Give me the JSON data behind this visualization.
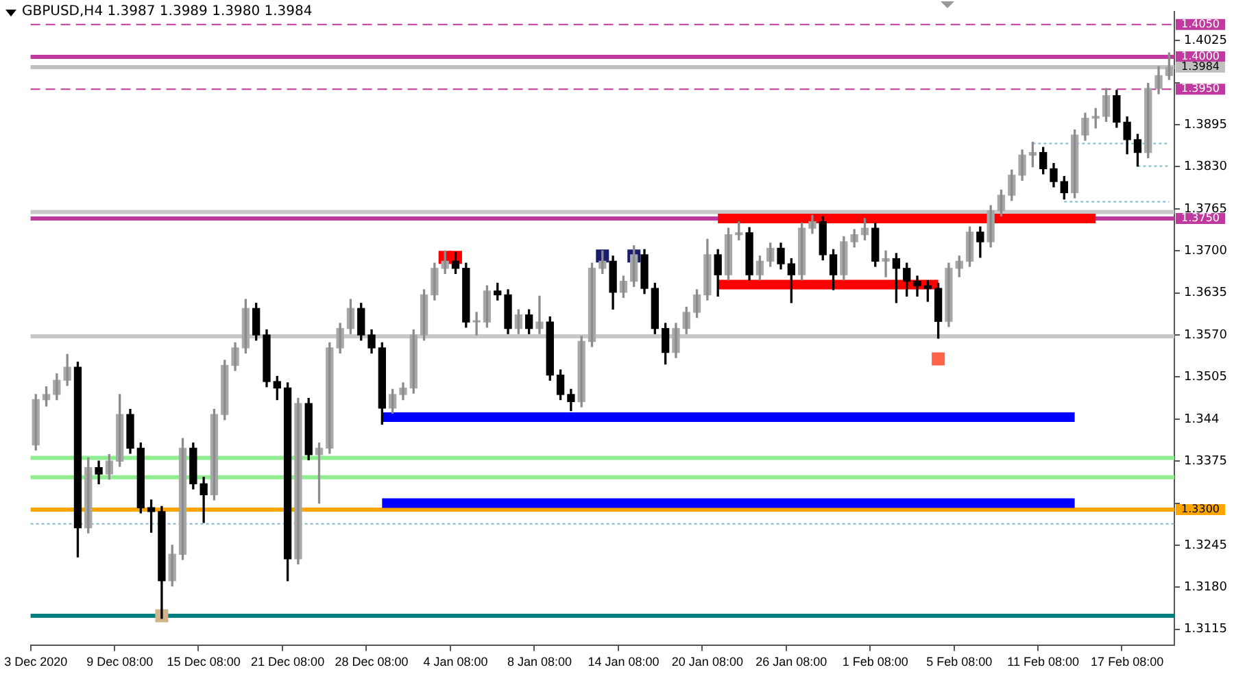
{
  "chart_data": {
    "type": "candlestick",
    "title": "GBPUSD,H4 1.3987 1.3989 1.3980 1.3984",
    "categories": [
      "3 Dec 2020",
      null,
      null,
      null,
      null,
      null,
      null,
      null,
      "9 Dec 08:00",
      null,
      null,
      null,
      null,
      null,
      null,
      null,
      "15 Dec 08:00",
      null,
      null,
      null,
      null,
      null,
      null,
      null,
      "21 Dec 08:00",
      null,
      null,
      null,
      null,
      null,
      null,
      null,
      "28 Dec 08:00",
      null,
      null,
      null,
      null,
      null,
      null,
      null,
      "4 Jan 08:00",
      null,
      null,
      null,
      null,
      null,
      null,
      null,
      "8 Jan 08:00",
      null,
      null,
      null,
      null,
      null,
      null,
      null,
      "14 Jan 08:00",
      null,
      null,
      null,
      null,
      null,
      null,
      null,
      "20 Jan 08:00",
      null,
      null,
      null,
      null,
      null,
      null,
      null,
      "26 Jan 08:00",
      null,
      null,
      null,
      null,
      null,
      null,
      null,
      "1 Feb 08:00",
      null,
      null,
      null,
      null,
      null,
      null,
      null,
      "5 Feb 08:00",
      null,
      null,
      null,
      null,
      null,
      null,
      null,
      "11 Feb 08:00",
      null,
      null,
      null,
      null,
      null,
      null,
      null,
      "17 Feb 08:00",
      null,
      null,
      null,
      null
    ],
    "ohlc": [
      [
        1.34,
        1.3478,
        1.3392,
        1.347
      ],
      [
        1.347,
        1.349,
        1.346,
        1.3478
      ],
      [
        1.3478,
        1.351,
        1.347,
        1.35
      ],
      [
        1.35,
        1.354,
        1.3492,
        1.352
      ],
      [
        1.352,
        1.3528,
        1.3227,
        1.3272
      ],
      [
        1.3272,
        1.338,
        1.3264,
        1.3365
      ],
      [
        1.3365,
        1.3375,
        1.334,
        1.3355
      ],
      [
        1.3355,
        1.3385,
        1.3347,
        1.3375
      ],
      [
        1.3375,
        1.3478,
        1.3367,
        1.3447
      ],
      [
        1.3447,
        1.3455,
        1.3387,
        1.3395
      ],
      [
        1.3395,
        1.3403,
        1.3295,
        1.3303
      ],
      [
        1.3303,
        1.3315,
        1.3265,
        1.3297
      ],
      [
        1.3297,
        1.3305,
        1.3132,
        1.319
      ],
      [
        1.319,
        1.3245,
        1.3182,
        1.3231
      ],
      [
        1.3231,
        1.341,
        1.3223,
        1.3395
      ],
      [
        1.3395,
        1.3403,
        1.3332,
        1.334
      ],
      [
        1.334,
        1.335,
        1.328,
        1.3323
      ],
      [
        1.3323,
        1.3455,
        1.3315,
        1.3447
      ],
      [
        1.3447,
        1.3531,
        1.3439,
        1.3523
      ],
      [
        1.3523,
        1.3558,
        1.3515,
        1.355
      ],
      [
        1.355,
        1.3625,
        1.3542,
        1.3611
      ],
      [
        1.3611,
        1.3619,
        1.3562,
        1.357
      ],
      [
        1.357,
        1.3578,
        1.349,
        1.3498
      ],
      [
        1.3498,
        1.3506,
        1.347,
        1.3488
      ],
      [
        1.3488,
        1.3496,
        1.319,
        1.3224
      ],
      [
        1.3224,
        1.3472,
        1.3216,
        1.3464
      ],
      [
        1.3464,
        1.3472,
        1.3377,
        1.3385
      ],
      [
        1.3385,
        1.3403,
        1.331,
        1.3395
      ],
      [
        1.3395,
        1.3558,
        1.3387,
        1.355
      ],
      [
        1.355,
        1.3588,
        1.3542,
        1.358
      ],
      [
        1.358,
        1.3625,
        1.3572,
        1.3611
      ],
      [
        1.3611,
        1.3619,
        1.3562,
        1.357
      ],
      [
        1.357,
        1.3578,
        1.3542,
        1.355
      ],
      [
        1.355,
        1.3558,
        1.3432,
        1.3457
      ],
      [
        1.3457,
        1.3486,
        1.3449,
        1.3478
      ],
      [
        1.3478,
        1.3496,
        1.347,
        1.3488
      ],
      [
        1.3488,
        1.3578,
        1.348,
        1.357
      ],
      [
        1.357,
        1.364,
        1.3562,
        1.3632
      ],
      [
        1.3632,
        1.3681,
        1.3624,
        1.3673
      ],
      [
        1.3673,
        1.37,
        1.3665,
        1.3684
      ],
      [
        1.3684,
        1.3698,
        1.3665,
        1.3673
      ],
      [
        1.3673,
        1.3681,
        1.3582,
        1.359
      ],
      [
        1.359,
        1.3605,
        1.357,
        1.359
      ],
      [
        1.359,
        1.3646,
        1.3582,
        1.3638
      ],
      [
        1.3638,
        1.365,
        1.3624,
        1.3632
      ],
      [
        1.3632,
        1.364,
        1.3572,
        1.358
      ],
      [
        1.358,
        1.3609,
        1.3572,
        1.3601
      ],
      [
        1.3601,
        1.3609,
        1.3572,
        1.358
      ],
      [
        1.358,
        1.363,
        1.3572,
        1.359
      ],
      [
        1.359,
        1.3598,
        1.35,
        1.3508
      ],
      [
        1.3508,
        1.3516,
        1.347,
        1.3478
      ],
      [
        1.3478,
        1.3486,
        1.3453,
        1.3467
      ],
      [
        1.3467,
        1.3568,
        1.3459,
        1.356
      ],
      [
        1.356,
        1.3681,
        1.3552,
        1.3673
      ],
      [
        1.3673,
        1.37,
        1.3665,
        1.3684
      ],
      [
        1.3684,
        1.3692,
        1.361,
        1.3636
      ],
      [
        1.3636,
        1.3661,
        1.3628,
        1.3653
      ],
      [
        1.3653,
        1.3708,
        1.3645,
        1.3694
      ],
      [
        1.3694,
        1.3702,
        1.3634,
        1.3642
      ],
      [
        1.3642,
        1.365,
        1.3572,
        1.358
      ],
      [
        1.358,
        1.3588,
        1.3525,
        1.3543
      ],
      [
        1.3543,
        1.3588,
        1.3535,
        1.358
      ],
      [
        1.358,
        1.3613,
        1.3572,
        1.3605
      ],
      [
        1.3605,
        1.364,
        1.3597,
        1.3632
      ],
      [
        1.3632,
        1.3718,
        1.3624,
        1.3694
      ],
      [
        1.3694,
        1.3702,
        1.363,
        1.3663
      ],
      [
        1.3663,
        1.3735,
        1.3655,
        1.3725
      ],
      [
        1.3725,
        1.3745,
        1.3717,
        1.3728
      ],
      [
        1.3728,
        1.3736,
        1.3655,
        1.3663
      ],
      [
        1.3663,
        1.3692,
        1.3655,
        1.3684
      ],
      [
        1.3684,
        1.3712,
        1.3676,
        1.3704
      ],
      [
        1.3704,
        1.3712,
        1.3672,
        1.368
      ],
      [
        1.368,
        1.3688,
        1.362,
        1.3663
      ],
      [
        1.3663,
        1.3743,
        1.3655,
        1.3735
      ],
      [
        1.3735,
        1.3755,
        1.3727,
        1.3745
      ],
      [
        1.3745,
        1.3753,
        1.3686,
        1.3694
      ],
      [
        1.3694,
        1.3702,
        1.364,
        1.3663
      ],
      [
        1.3663,
        1.3722,
        1.3655,
        1.3714
      ],
      [
        1.3714,
        1.3733,
        1.3706,
        1.3725
      ],
      [
        1.3725,
        1.375,
        1.3717,
        1.3735
      ],
      [
        1.3735,
        1.3743,
        1.3676,
        1.3684
      ],
      [
        1.3684,
        1.37,
        1.366,
        1.3688
      ],
      [
        1.3688,
        1.3696,
        1.362,
        1.3673
      ],
      [
        1.3673,
        1.3681,
        1.363,
        1.3653
      ],
      [
        1.3653,
        1.3661,
        1.363,
        1.3646
      ],
      [
        1.3646,
        1.3654,
        1.3622,
        1.3642
      ],
      [
        1.3642,
        1.365,
        1.3565,
        1.3591
      ],
      [
        1.3591,
        1.3681,
        1.3583,
        1.3673
      ],
      [
        1.3673,
        1.3692,
        1.366,
        1.3684
      ],
      [
        1.3684,
        1.3737,
        1.3676,
        1.3729
      ],
      [
        1.3729,
        1.3737,
        1.369,
        1.3714
      ],
      [
        1.3714,
        1.377,
        1.3706,
        1.3762
      ],
      [
        1.3762,
        1.3794,
        1.3754,
        1.3786
      ],
      [
        1.3786,
        1.3825,
        1.3778,
        1.3817
      ],
      [
        1.3817,
        1.3856,
        1.3809,
        1.3848
      ],
      [
        1.3848,
        1.3868,
        1.383,
        1.3852
      ],
      [
        1.3852,
        1.386,
        1.3819,
        1.3827
      ],
      [
        1.3827,
        1.3835,
        1.3799,
        1.3807
      ],
      [
        1.3807,
        1.3815,
        1.378,
        1.379
      ],
      [
        1.379,
        1.3887,
        1.3782,
        1.3879
      ],
      [
        1.3879,
        1.3913,
        1.3871,
        1.3905
      ],
      [
        1.3905,
        1.392,
        1.389,
        1.3908
      ],
      [
        1.3908,
        1.3951,
        1.39,
        1.394
      ],
      [
        1.394,
        1.3948,
        1.3891,
        1.3899
      ],
      [
        1.3899,
        1.3907,
        1.385,
        1.3872
      ],
      [
        1.3872,
        1.388,
        1.3831,
        1.3852
      ],
      [
        1.3852,
        1.3959,
        1.3844,
        1.3951
      ],
      [
        1.3951,
        1.3985,
        1.3943,
        1.3971
      ],
      [
        1.3971,
        1.4006,
        1.3965,
        1.3984
      ]
    ],
    "series": [
      {
        "type": "line",
        "color": "#ff0000",
        "line_style": "solid",
        "values": [
          null,
          null,
          null,
          null,
          null,
          null,
          null,
          null,
          null,
          null,
          null,
          null,
          null,
          null,
          null,
          null,
          null,
          null,
          null,
          null,
          null,
          null,
          null,
          null,
          null,
          null,
          null,
          null,
          null,
          null,
          null,
          null,
          null,
          null,
          null,
          null,
          null,
          null,
          null,
          null,
          null,
          null,
          null,
          null,
          null,
          null,
          null,
          null,
          null,
          null,
          null,
          null,
          null,
          null,
          null,
          null,
          null,
          null,
          null,
          null,
          null,
          null,
          null,
          null,
          null,
          1.375,
          null,
          null,
          null,
          null,
          null,
          null,
          null,
          null,
          null,
          null,
          null,
          null,
          null,
          null,
          null,
          null,
          null,
          null,
          null,
          null,
          null,
          null,
          null,
          null,
          null,
          null,
          null,
          null,
          null,
          null,
          null,
          null,
          null,
          null,
          null,
          1.375,
          null,
          null,
          null,
          null,
          null,
          null,
          null
        ]
      },
      {
        "type": "line",
        "color": "#ff0000",
        "line_style": "solid",
        "values": [
          null,
          null,
          null,
          null,
          null,
          null,
          null,
          null,
          null,
          null,
          null,
          null,
          null,
          null,
          null,
          null,
          null,
          null,
          null,
          null,
          null,
          null,
          null,
          null,
          null,
          null,
          null,
          null,
          null,
          null,
          null,
          null,
          null,
          null,
          null,
          null,
          null,
          null,
          null,
          null,
          null,
          null,
          null,
          null,
          null,
          null,
          null,
          null,
          null,
          null,
          null,
          null,
          null,
          null,
          null,
          null,
          null,
          null,
          null,
          null,
          null,
          null,
          null,
          null,
          null,
          1.3648,
          null,
          null,
          null,
          null,
          null,
          null,
          null,
          null,
          null,
          null,
          null,
          null,
          null,
          null,
          null,
          null,
          null,
          null,
          null,
          null,
          1.3648,
          null,
          null,
          null,
          null,
          null,
          null,
          null,
          null,
          null,
          null,
          null,
          null,
          null,
          null,
          null,
          null,
          null,
          null,
          null,
          null,
          null,
          null
        ]
      },
      {
        "type": "line",
        "color": "#0000ff",
        "line_style": "solid",
        "values": [
          null,
          null,
          null,
          null,
          null,
          null,
          null,
          null,
          null,
          null,
          null,
          null,
          null,
          null,
          null,
          null,
          null,
          null,
          null,
          null,
          null,
          null,
          null,
          null,
          null,
          null,
          null,
          null,
          null,
          null,
          null,
          null,
          null,
          1.3443,
          null,
          null,
          null,
          null,
          null,
          null,
          null,
          null,
          null,
          null,
          null,
          null,
          null,
          null,
          null,
          null,
          null,
          null,
          null,
          null,
          null,
          null,
          null,
          null,
          null,
          null,
          null,
          null,
          null,
          null,
          null,
          null,
          null,
          null,
          null,
          null,
          null,
          null,
          null,
          null,
          null,
          null,
          null,
          null,
          null,
          null,
          null,
          null,
          null,
          null,
          null,
          null,
          null,
          null,
          null,
          null,
          null,
          null,
          null,
          null,
          null,
          null,
          null,
          null,
          null,
          1.3443,
          null,
          null,
          null,
          null,
          null,
          null,
          null,
          null,
          null
        ]
      },
      {
        "type": "line",
        "color": "#0000ff",
        "line_style": "solid",
        "values": [
          null,
          null,
          null,
          null,
          null,
          null,
          null,
          null,
          null,
          null,
          null,
          null,
          null,
          null,
          null,
          null,
          null,
          null,
          null,
          null,
          null,
          null,
          null,
          null,
          null,
          null,
          null,
          null,
          null,
          null,
          null,
          null,
          null,
          1.331,
          null,
          null,
          null,
          null,
          null,
          null,
          null,
          null,
          null,
          null,
          null,
          null,
          null,
          null,
          null,
          null,
          null,
          null,
          null,
          null,
          null,
          null,
          null,
          null,
          null,
          null,
          null,
          null,
          null,
          null,
          null,
          null,
          null,
          null,
          null,
          null,
          null,
          null,
          null,
          null,
          null,
          null,
          null,
          null,
          null,
          null,
          null,
          null,
          null,
          null,
          null,
          null,
          null,
          null,
          null,
          null,
          null,
          null,
          null,
          null,
          null,
          null,
          null,
          null,
          null,
          1.331,
          null,
          null,
          null,
          null,
          null,
          null,
          null,
          null,
          null
        ]
      },
      {
        "type": "line",
        "color": "#7fb8cc",
        "line_style": "dotted",
        "values": [
          null,
          null,
          null,
          null,
          null,
          null,
          null,
          null,
          null,
          null,
          null,
          null,
          null,
          null,
          null,
          null,
          null,
          null,
          null,
          null,
          null,
          null,
          null,
          null,
          null,
          null,
          null,
          null,
          null,
          null,
          null,
          null,
          null,
          null,
          null,
          null,
          null,
          null,
          null,
          null,
          null,
          null,
          null,
          null,
          null,
          null,
          null,
          null,
          null,
          null,
          null,
          null,
          null,
          null,
          null,
          null,
          null,
          null,
          null,
          null,
          null,
          null,
          null,
          null,
          null,
          null,
          null,
          null,
          null,
          null,
          null,
          null,
          null,
          null,
          null,
          null,
          null,
          null,
          null,
          null,
          null,
          null,
          null,
          null,
          null,
          null,
          null,
          null,
          null,
          null,
          null,
          null,
          null,
          null,
          null,
          1.3866,
          null,
          null,
          null,
          null,
          null,
          null,
          null,
          null,
          null,
          null,
          null,
          null,
          1.3866
        ]
      },
      {
        "type": "line",
        "color": "#7fb8cc",
        "line_style": "dotted",
        "values": [
          null,
          null,
          null,
          null,
          null,
          null,
          null,
          null,
          null,
          null,
          null,
          null,
          null,
          null,
          null,
          null,
          null,
          null,
          null,
          null,
          null,
          null,
          null,
          null,
          null,
          null,
          null,
          null,
          null,
          null,
          null,
          null,
          null,
          null,
          null,
          null,
          null,
          null,
          null,
          null,
          null,
          null,
          null,
          null,
          null,
          null,
          null,
          null,
          null,
          null,
          null,
          null,
          null,
          null,
          null,
          null,
          null,
          null,
          null,
          null,
          null,
          null,
          null,
          null,
          null,
          null,
          null,
          null,
          null,
          null,
          null,
          null,
          null,
          null,
          null,
          null,
          null,
          null,
          null,
          null,
          null,
          null,
          null,
          null,
          null,
          null,
          null,
          null,
          null,
          null,
          null,
          null,
          null,
          null,
          null,
          null,
          null,
          null,
          null,
          null,
          null,
          null,
          null,
          null,
          null,
          1.3831,
          null,
          null,
          1.3831
        ]
      },
      {
        "type": "line",
        "color": "#7fb8cc",
        "line_style": "dotted",
        "values": [
          null,
          null,
          null,
          null,
          null,
          null,
          null,
          null,
          null,
          null,
          null,
          null,
          null,
          null,
          null,
          null,
          null,
          null,
          null,
          null,
          null,
          null,
          null,
          null,
          null,
          null,
          null,
          null,
          null,
          null,
          null,
          null,
          null,
          null,
          null,
          null,
          null,
          null,
          null,
          null,
          null,
          null,
          null,
          null,
          null,
          null,
          null,
          null,
          null,
          null,
          null,
          null,
          null,
          null,
          null,
          null,
          null,
          null,
          null,
          null,
          null,
          null,
          null,
          null,
          null,
          null,
          null,
          null,
          null,
          null,
          null,
          null,
          null,
          null,
          null,
          null,
          null,
          null,
          null,
          null,
          null,
          null,
          null,
          null,
          null,
          null,
          null,
          null,
          null,
          null,
          null,
          null,
          null,
          null,
          null,
          null,
          null,
          null,
          1.3776,
          null,
          null,
          null,
          null,
          null,
          null,
          null,
          null,
          null,
          1.3776
        ]
      },
      {
        "type": "scatter",
        "color": "#ff0000",
        "marker": "square",
        "values": [
          null,
          null,
          null,
          null,
          null,
          null,
          null,
          null,
          null,
          null,
          null,
          null,
          null,
          null,
          null,
          null,
          null,
          null,
          null,
          null,
          null,
          null,
          null,
          null,
          null,
          null,
          null,
          null,
          null,
          null,
          null,
          null,
          null,
          null,
          null,
          null,
          null,
          null,
          null,
          1.369,
          1.369,
          null,
          null,
          null,
          null,
          null,
          null,
          null,
          null,
          null,
          null,
          null,
          null,
          null,
          null,
          null,
          null,
          null,
          null,
          null,
          null,
          null,
          null,
          null,
          null,
          null,
          null,
          null,
          null,
          null,
          null,
          null,
          null,
          null,
          null,
          null,
          null,
          null,
          null,
          null,
          null,
          null,
          null,
          null,
          null,
          null,
          null,
          null,
          null,
          null,
          null,
          null,
          null,
          null,
          null,
          null,
          null,
          null,
          null,
          null,
          null,
          null,
          null,
          null,
          null,
          null,
          null,
          null,
          null
        ]
      },
      {
        "type": "scatter",
        "color": "#1c1c6e",
        "marker": "square",
        "values": [
          null,
          null,
          null,
          null,
          null,
          null,
          null,
          null,
          null,
          null,
          null,
          null,
          null,
          null,
          null,
          null,
          null,
          null,
          null,
          null,
          null,
          null,
          null,
          null,
          null,
          null,
          null,
          null,
          null,
          null,
          null,
          null,
          null,
          null,
          null,
          null,
          null,
          null,
          null,
          null,
          null,
          null,
          null,
          null,
          null,
          null,
          null,
          null,
          null,
          null,
          null,
          null,
          null,
          null,
          1.3692,
          null,
          null,
          1.3692,
          null,
          null,
          null,
          null,
          null,
          null,
          null,
          null,
          null,
          null,
          null,
          null,
          null,
          null,
          null,
          null,
          null,
          null,
          null,
          null,
          null,
          null,
          null,
          null,
          null,
          null,
          null,
          null,
          null,
          null,
          null,
          null,
          null,
          null,
          null,
          null,
          null,
          null,
          null,
          null,
          null,
          null,
          null,
          null,
          null,
          null,
          null,
          null,
          null,
          null,
          null
        ]
      },
      {
        "type": "scatter",
        "color": "#ff6347",
        "marker": "square",
        "values": [
          null,
          null,
          null,
          null,
          null,
          null,
          null,
          null,
          null,
          null,
          null,
          null,
          null,
          null,
          null,
          null,
          null,
          null,
          null,
          null,
          null,
          null,
          null,
          null,
          null,
          null,
          null,
          null,
          null,
          null,
          null,
          null,
          null,
          null,
          null,
          null,
          null,
          null,
          null,
          null,
          null,
          null,
          null,
          null,
          null,
          null,
          null,
          null,
          null,
          null,
          null,
          null,
          null,
          null,
          null,
          null,
          null,
          null,
          null,
          null,
          null,
          null,
          null,
          null,
          null,
          null,
          null,
          null,
          null,
          null,
          null,
          null,
          null,
          null,
          null,
          null,
          null,
          null,
          null,
          null,
          null,
          null,
          null,
          null,
          null,
          null,
          1.3533,
          null,
          null,
          null,
          null,
          null,
          null,
          null,
          null,
          null,
          null,
          null,
          null,
          null,
          null,
          null,
          null,
          null,
          null,
          null,
          null,
          null,
          null
        ]
      },
      {
        "type": "scatter",
        "color": "#d2b48c",
        "marker": "square",
        "values": [
          null,
          null,
          null,
          null,
          null,
          null,
          null,
          null,
          null,
          null,
          null,
          null,
          1.3136,
          null,
          null,
          null,
          null,
          null,
          null,
          null,
          null,
          null,
          null,
          null,
          null,
          null,
          null,
          null,
          null,
          null,
          null,
          null,
          null,
          null,
          null,
          null,
          null,
          null,
          null,
          null,
          null,
          null,
          null,
          null,
          null,
          null,
          null,
          null,
          null,
          null,
          null,
          null,
          null,
          null,
          null,
          null,
          null,
          null,
          null,
          null,
          null,
          null,
          null,
          null,
          null,
          null,
          null,
          null,
          null,
          null,
          null,
          null,
          null,
          null,
          null,
          null,
          null,
          null,
          null,
          null,
          null,
          null,
          null,
          null,
          null,
          null,
          null,
          null,
          null,
          null,
          null,
          null,
          null,
          null,
          null,
          null,
          null,
          null,
          null,
          null,
          null,
          null,
          null,
          null,
          null,
          null,
          null,
          null,
          null
        ]
      }
    ],
    "ref_lines": [
      {
        "axis": "y",
        "value": 1.405,
        "label": "1.4050",
        "color": "#c0399f",
        "line_style": "dashed"
      },
      {
        "axis": "y",
        "value": 1.4,
        "label": "1.4000",
        "color": "#c0399f",
        "line_style": "solid"
      },
      {
        "axis": "y",
        "value": 1.3984,
        "label": "1.3984",
        "color": "#c0c0c0",
        "line_style": "solid"
      },
      {
        "axis": "y",
        "value": 1.395,
        "label": "1.3950",
        "color": "#c0399f",
        "line_style": "dashed"
      },
      {
        "axis": "y",
        "value": 1.376,
        "color": "#c8c8c8",
        "line_style": "solid"
      },
      {
        "axis": "y",
        "value": 1.375,
        "label": "1.3750",
        "color": "#c0399f",
        "line_style": "solid"
      },
      {
        "axis": "y",
        "value": 1.3568,
        "color": "#c8c8c8",
        "line_style": "solid"
      },
      {
        "axis": "y",
        "value": 1.338,
        "color": "#90ee90",
        "line_style": "solid"
      },
      {
        "axis": "y",
        "value": 1.335,
        "color": "#90ee90",
        "line_style": "solid"
      },
      {
        "axis": "y",
        "value": 1.33,
        "label": "1.3300",
        "color": "#ffa500",
        "line_style": "solid"
      },
      {
        "axis": "y",
        "value": 1.3278,
        "color": "#7fb8cc",
        "line_style": "dotted"
      },
      {
        "axis": "y",
        "value": 1.3136,
        "color": "#008080",
        "line_style": "solid"
      }
    ],
    "ylim": [
      1.309,
      1.407
    ],
    "yticks": [
      1.3115,
      {
        "value": 1.318,
        "label": "1.3180"
      },
      1.3245,
      {
        "value": 1.331,
        "label": null
      },
      1.3375,
      1.344,
      1.3505,
      {
        "value": 1.357,
        "label": "1.3570"
      },
      1.3635,
      {
        "value": 1.37,
        "label": "1.3700"
      },
      1.3765,
      {
        "value": 1.383,
        "label": "1.3830"
      },
      1.3895,
      {
        "value": 1.396,
        "label": null
      },
      1.4025
    ],
    "legend": false
  }
}
